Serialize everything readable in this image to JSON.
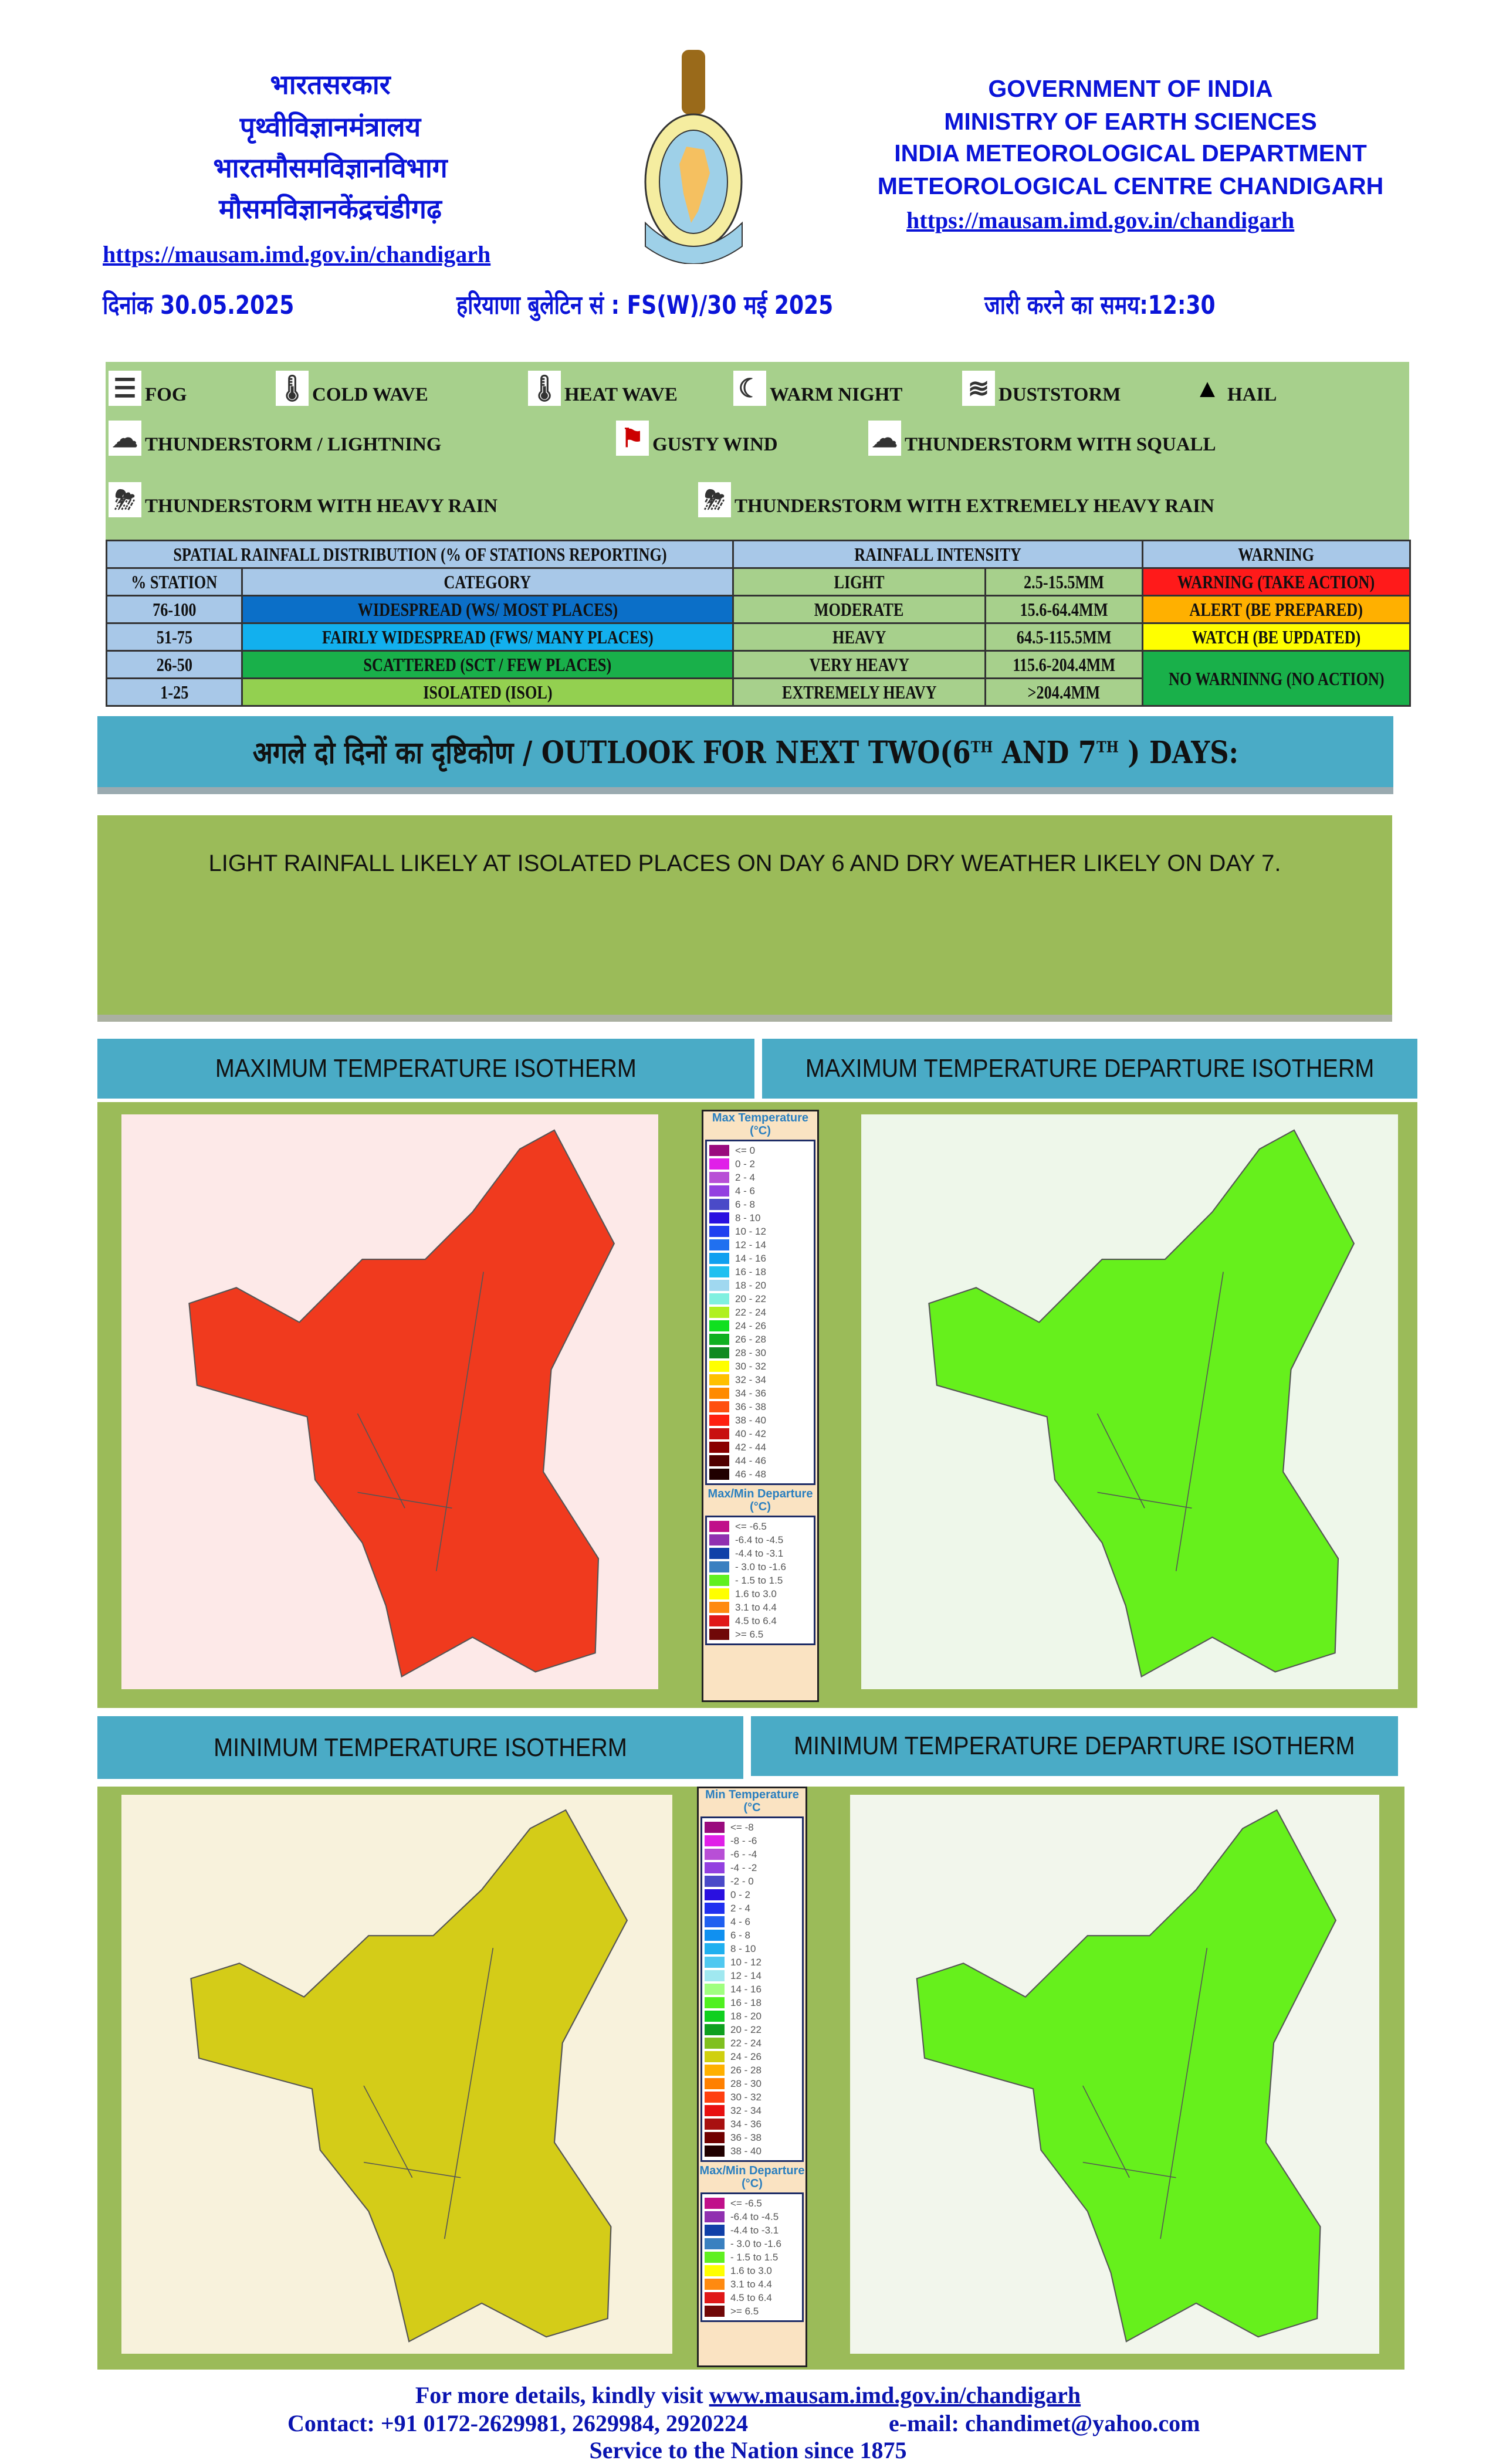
{
  "header": {
    "hindi_lines": [
      "भारतसरकार",
      "पृथ्वीविज्ञानमंत्रालय",
      "भारतमौसमविज्ञानविभाग",
      "मौसमविज्ञानकेंद्रचंडीगढ़"
    ],
    "english_lines": [
      "GOVERNMENT OF INDIA",
      "MINISTRY OF EARTH SCIENCES",
      "INDIA METEOROLOGICAL DEPARTMENT",
      "METEOROLOGICAL CENTRE CHANDIGARH"
    ],
    "url_left": "https://mausam.imd.gov.in/chandigarh",
    "url_right": "https://mausam.imd.gov.in/chandigarh",
    "logo_text": "INDIA METEOROLOGICAL DEPARTMENT",
    "date": "दिनांक 30.05.2025",
    "bulletin": "हरियाणा बुलेटिन सं : FS(W)/30 मई 2025",
    "issue_time": "जारी करने का समय:12:30"
  },
  "symbols": [
    {
      "icon": "fog-icon",
      "label": "FOG"
    },
    {
      "icon": "cold-wave-icon",
      "label": "COLD WAVE"
    },
    {
      "icon": "heat-wave-icon",
      "label": "HEAT WAVE"
    },
    {
      "icon": "warm-night-icon",
      "label": "WARM NIGHT"
    },
    {
      "icon": "duststorm-icon",
      "label": "DUSTSTORM"
    },
    {
      "icon": "hail-icon",
      "label": "HAIL"
    },
    {
      "icon": "thunderstorm-lightning-icon",
      "label": "THUNDERSTORM / LIGHTNING"
    },
    {
      "icon": "gusty-wind-icon",
      "label": "GUSTY WIND"
    },
    {
      "icon": "thunderstorm-squall-icon",
      "label": "THUNDERSTORM WITH SQUALL"
    },
    {
      "icon": "thunderstorm-heavy-rain-icon",
      "label": "THUNDERSTORM WITH HEAVY RAIN"
    },
    {
      "icon": "thunderstorm-extremely-heavy-rain-icon",
      "label": "THUNDERSTORM WITH EXTREMELY HEAVY RAIN"
    }
  ],
  "rain_table": {
    "h_spatial": "SPATIAL RAINFALL DISTRIBUTION (% OF STATIONS REPORTING)",
    "h_intensity": "RAINFALL INTENSITY",
    "h_warning": "WARNING",
    "h_station": "% STATION",
    "h_category": "CATEGORY",
    "rows": [
      {
        "station": "76-100",
        "category": "WIDESPREAD (WS/ MOST PLACES)",
        "cat_color": "#0b6fc8",
        "intensity": "LIGHT",
        "mm": "2.5-15.5MM",
        "warning": "WARNING (TAKE ACTION)",
        "warn_color": "#ff1a1a"
      },
      {
        "station": "51-75",
        "category": "FAIRLY WIDESPREAD (FWS/ MANY PLACES)",
        "cat_color": "#12b0ee",
        "intensity": "MODERATE",
        "mm": "15.6-64.4MM",
        "warning": "ALERT (BE PREPARED)",
        "warn_color": "#ffb000"
      },
      {
        "station": "26-50",
        "category": "SCATTERED (SCT / FEW PLACES)",
        "cat_color": "#19b04a",
        "intensity": "HEAVY",
        "mm": "64.5-115.5MM",
        "warning": "WATCH (BE UPDATED)",
        "warn_color": "#ffff00"
      },
      {
        "station": "1-25",
        "category": "ISOLATED (ISOL)",
        "cat_color": "#93d050",
        "intensity": "VERY HEAVY",
        "mm": "115.6-204.4MM",
        "warning": "NO WARNINNG (NO ACTION)",
        "warn_color": "#19b04a"
      },
      {
        "intensity": "EXTREMELY HEAVY",
        "mm": ">204.4MM"
      }
    ]
  },
  "outlook": {
    "title": "अगले दो दिनों का दृष्टिकोण / OUTLOOK FOR NEXT TWO(6",
    "sup1": "TH",
    "mid": " AND 7",
    "sup2": "TH",
    "end": " ) DAYS:",
    "text": "LIGHT RAINFALL LIKELY AT ISOLATED PLACES ON DAY 6 AND DRY WEATHER LIKELY ON DAY 7."
  },
  "sections": {
    "max_temp": "MAXIMUM TEMPERATURE ISOTHERM",
    "max_dep": "MAXIMUM TEMPERATURE DEPARTURE ISOTHERM",
    "min_temp": "MINIMUM TEMPERATURE ISOTHERM",
    "min_dep": "MINIMUM TEMPERATURE DEPARTURE ISOTHERM"
  },
  "legends": {
    "max_title": "Max Temperature (°C)",
    "max": [
      [
        "<= 0",
        "#9a0a7e"
      ],
      [
        "0 - 2",
        "#e020e8"
      ],
      [
        "2 - 4",
        "#b84fd6"
      ],
      [
        "4 - 6",
        "#9340e0"
      ],
      [
        "6 - 8",
        "#4a4ac8"
      ],
      [
        "8 - 10",
        "#2a10e0"
      ],
      [
        "10 - 12",
        "#2040f0"
      ],
      [
        "12 - 14",
        "#2070f0"
      ],
      [
        "14 - 16",
        "#10a0f0"
      ],
      [
        "16 - 18",
        "#20c0f0"
      ],
      [
        "18 - 20",
        "#a0d8f0"
      ],
      [
        "20 - 22",
        "#80f0e0"
      ],
      [
        "22 - 24",
        "#b0f020"
      ],
      [
        "24 - 26",
        "#10e020"
      ],
      [
        "26 - 28",
        "#10b020"
      ],
      [
        "28 - 30",
        "#108a20"
      ],
      [
        "30 - 32",
        "#ffff00"
      ],
      [
        "32 - 34",
        "#ffc000"
      ],
      [
        "34 - 36",
        "#ff8a00"
      ],
      [
        "36 - 38",
        "#ff5010"
      ],
      [
        "38 - 40",
        "#ff2010"
      ],
      [
        "40 - 42",
        "#c81010"
      ],
      [
        "42 - 44",
        "#8a0000"
      ],
      [
        "44 - 46",
        "#500000"
      ],
      [
        "46 - 48",
        "#200000"
      ]
    ],
    "min_title": "Min Temperature (°C",
    "min": [
      [
        "<= -8",
        "#9a0a7e"
      ],
      [
        "-8 - -6",
        "#e020e8"
      ],
      [
        "-6 - -4",
        "#b84fd6"
      ],
      [
        "-4 - -2",
        "#9340e0"
      ],
      [
        "-2 - 0",
        "#4a4ac8"
      ],
      [
        "0 - 2",
        "#2a10e0"
      ],
      [
        "2 - 4",
        "#2030f0"
      ],
      [
        "4 - 6",
        "#2060f0"
      ],
      [
        "6 - 8",
        "#1090f0"
      ],
      [
        "8 - 10",
        "#20b0f0"
      ],
      [
        "10 - 12",
        "#50c8f0"
      ],
      [
        "12 - 14",
        "#a0e8f0"
      ],
      [
        "14 - 16",
        "#a0ff80"
      ],
      [
        "16 - 18",
        "#50f020"
      ],
      [
        "18 - 20",
        "#10d020"
      ],
      [
        "20 - 22",
        "#10a020"
      ],
      [
        "22 - 24",
        "#80c020"
      ],
      [
        "24 - 26",
        "#d0d010"
      ],
      [
        "26 - 28",
        "#ffb000"
      ],
      [
        "28 - 30",
        "#ff8000"
      ],
      [
        "30 - 32",
        "#ff4010"
      ],
      [
        "32 - 34",
        "#e81010"
      ],
      [
        "34 - 36",
        "#a81010"
      ],
      [
        "36 - 38",
        "#700000"
      ],
      [
        "38 - 40",
        "#200000"
      ]
    ],
    "dep_title": "Max/Min Departure (°C)",
    "dep": [
      [
        "<= -6.5",
        "#c0108a"
      ],
      [
        "-6.4 to -4.5",
        "#9030b0"
      ],
      [
        "-4.4 to -3.1",
        "#1040a8"
      ],
      [
        "- 3.0 to -1.6",
        "#3a80c0"
      ],
      [
        "- 1.5 to 1.5",
        "#60f020"
      ],
      [
        "1.6 to  3.0",
        "#ffff00"
      ],
      [
        "3.1 to 4.4",
        "#ff8a10"
      ],
      [
        "4.5 to 6.4",
        "#e01818"
      ],
      [
        ">= 6.5",
        "#700808"
      ]
    ]
  },
  "maps": {
    "max_temp_fill": "#f03a1e",
    "max_dep_fill": "#66f01c",
    "min_temp_fill": "#d4cc18",
    "min_dep_fill": "#66f01c"
  },
  "footer": {
    "visit_prefix": "For more details, kindly visit ",
    "visit_url": "www.mausam.imd.gov.in/chandigarh",
    "contact": "Contact: +91 0172-2629981, 2629984, 2920224",
    "email": "e-mail: chandimet@yahoo.com",
    "motto": "Service to the Nation since 1875"
  }
}
